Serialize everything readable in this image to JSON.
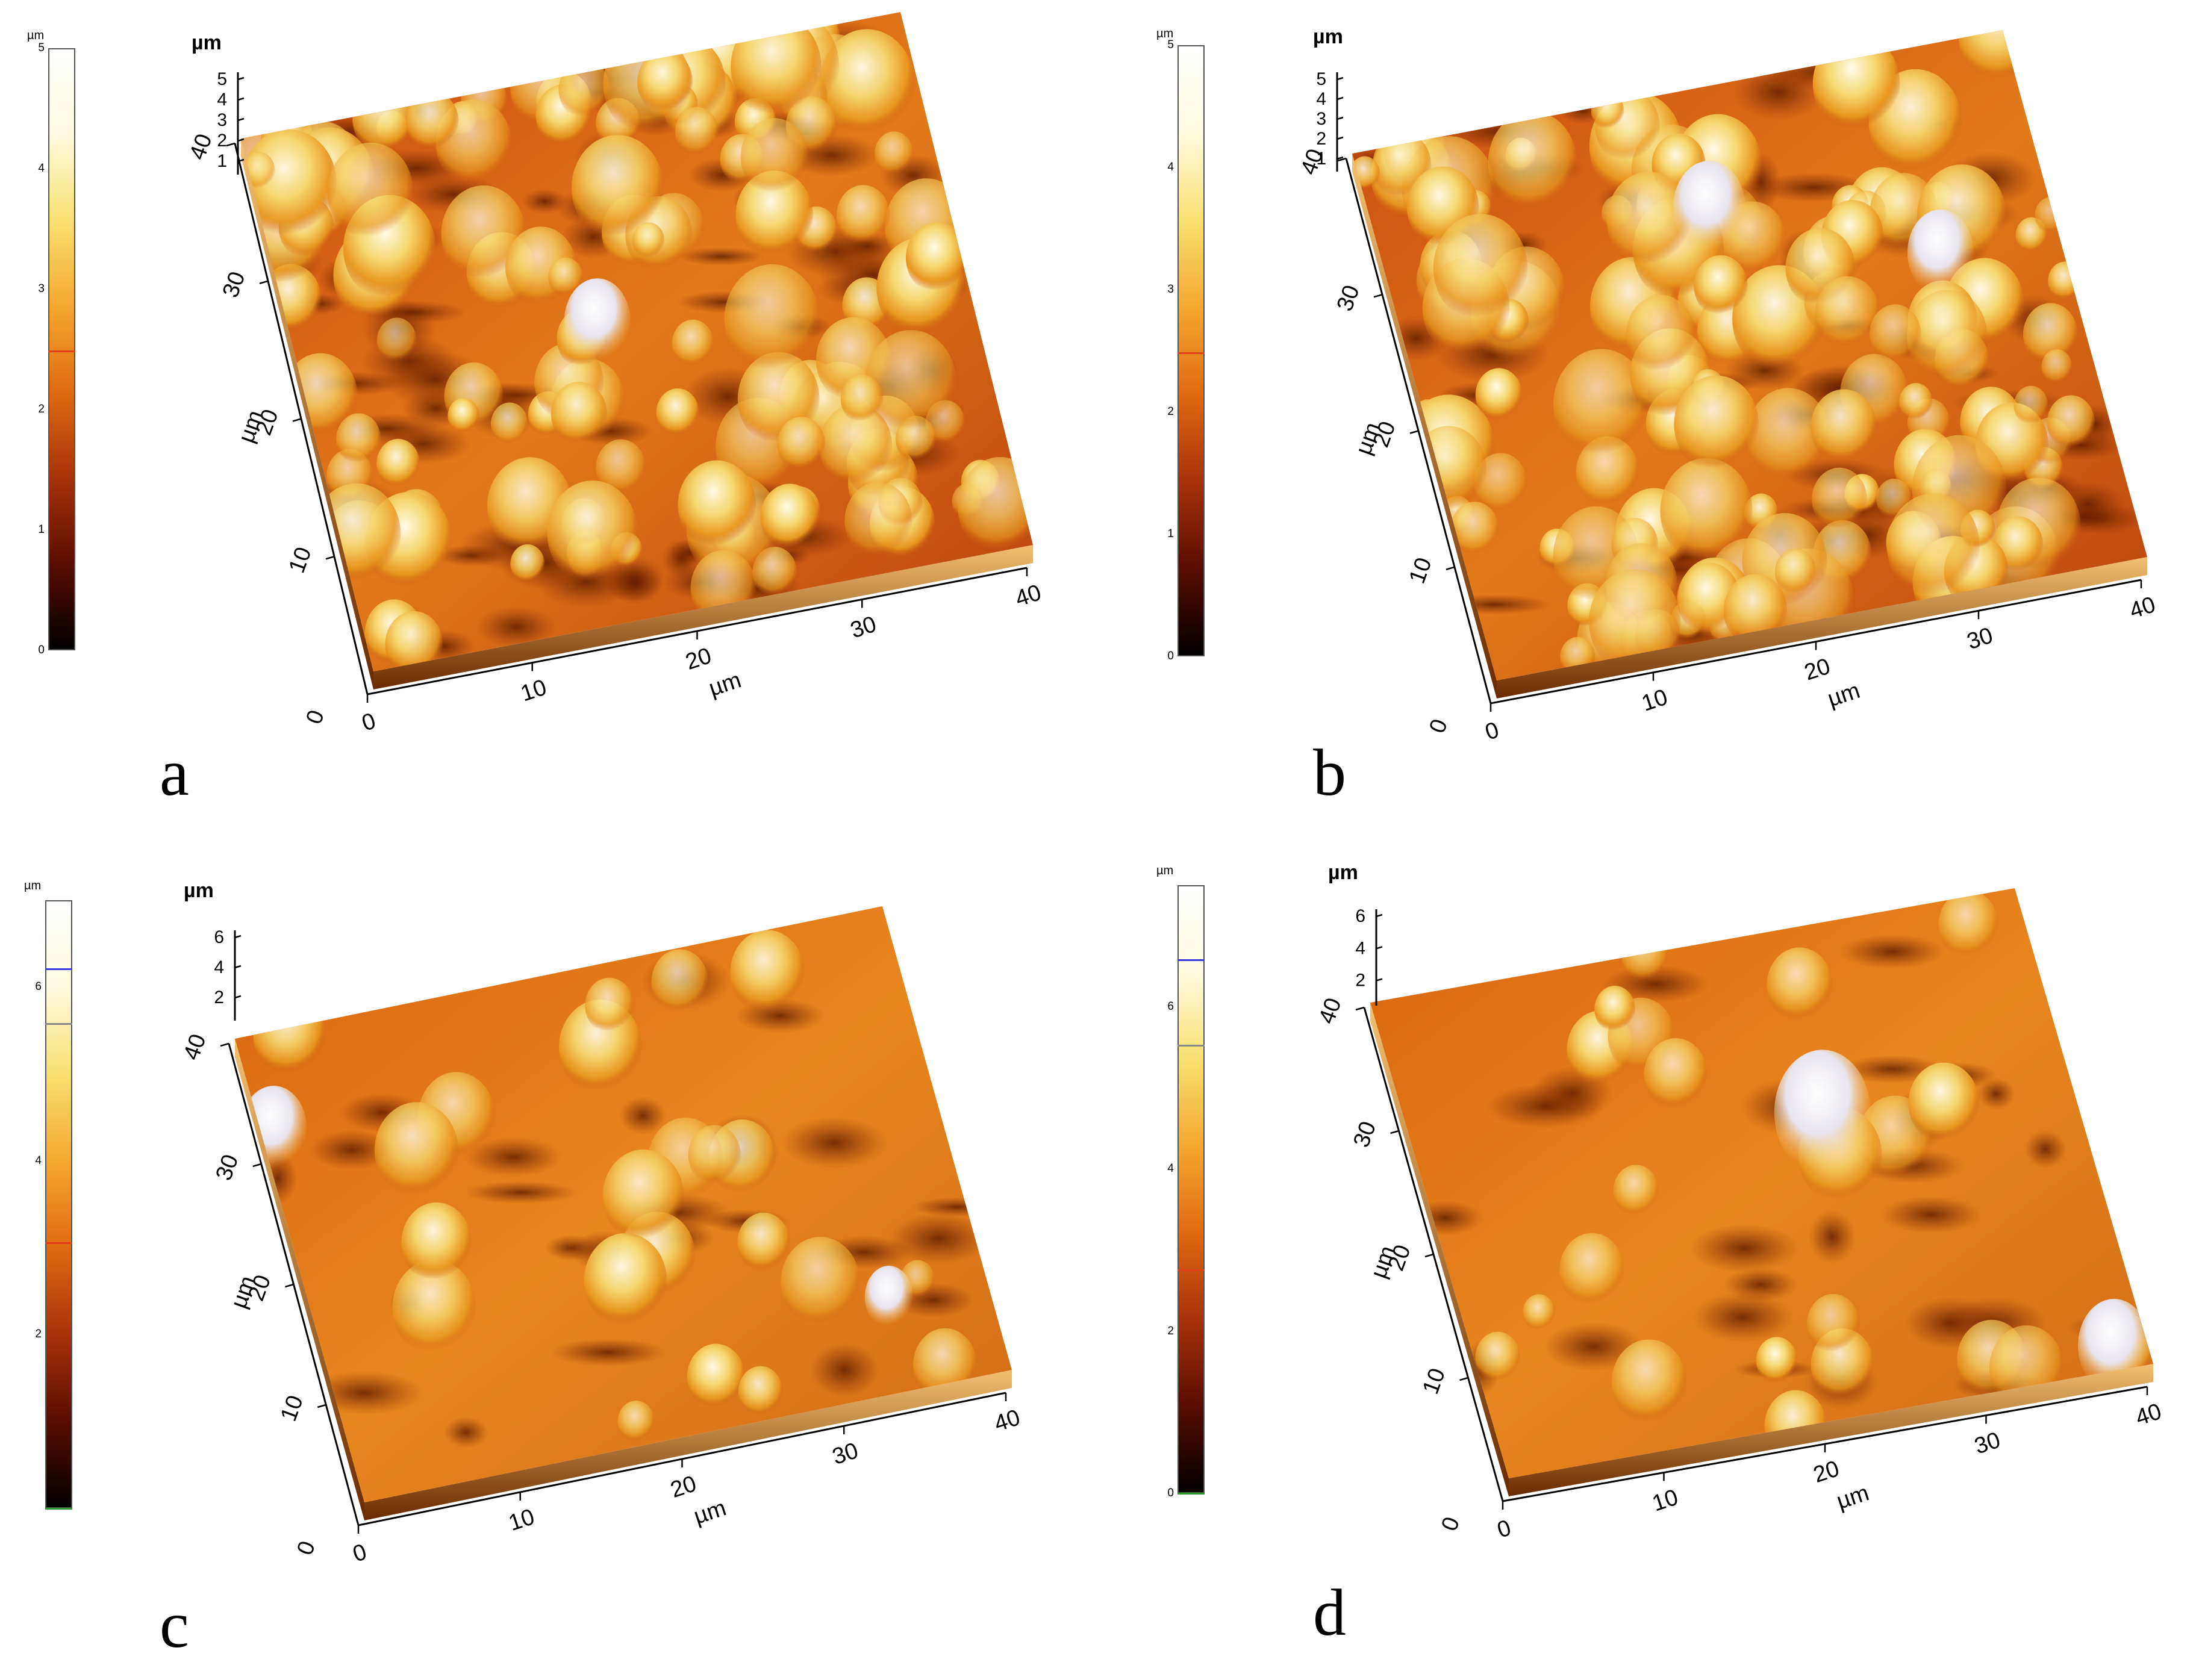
{
  "figure": {
    "panels": [
      {
        "id": "a",
        "letter": "a",
        "z_unit": "µm",
        "colorbar": {
          "unit": "µm",
          "ticks": [
            "0",
            "1",
            "2",
            "3",
            "4",
            "5"
          ],
          "max": 5,
          "marker_colors": [
            "#e0401a"
          ]
        },
        "axes": {
          "z_unit": "µm",
          "z_ticks": [
            "1",
            "2",
            "3",
            "4",
            "5"
          ],
          "y_ticks": [
            "10",
            "20",
            "30",
            "40"
          ],
          "y_unit": "µm",
          "x_ticks": [
            "0",
            "10",
            "20",
            "30",
            "40"
          ],
          "x_unit": "µm",
          "origin_label": "0"
        },
        "surface": "rough"
      },
      {
        "id": "b",
        "letter": "b",
        "z_unit": "µm",
        "colorbar": {
          "unit": "µm",
          "ticks": [
            "0",
            "1",
            "2",
            "3",
            "4",
            "5"
          ],
          "max": 5,
          "marker_colors": [
            "#e0401a"
          ]
        },
        "axes": {
          "z_unit": "µm",
          "z_ticks": [
            "1",
            "2",
            "3",
            "4",
            "5"
          ],
          "y_ticks": [
            "10",
            "20",
            "30",
            "40"
          ],
          "y_unit": "µm",
          "x_ticks": [
            "0",
            "10",
            "20",
            "30",
            "40"
          ],
          "x_unit": "µm",
          "origin_label": "0"
        },
        "surface": "rough"
      },
      {
        "id": "c",
        "letter": "c",
        "z_unit": "µm",
        "colorbar": {
          "unit": "µm",
          "ticks": [
            "2",
            "4",
            "6"
          ],
          "max": 7,
          "marker_colors": [
            "#3a3ae0",
            "#e0401a"
          ]
        },
        "axes": {
          "z_unit": "µm",
          "z_ticks": [
            "2",
            "4",
            "6"
          ],
          "y_ticks": [
            "10",
            "20",
            "30",
            "40"
          ],
          "y_unit": "µm",
          "x_ticks": [
            "0",
            "10",
            "20",
            "30",
            "40"
          ],
          "x_unit": "µm",
          "origin_label": "0"
        },
        "surface": "smooth"
      },
      {
        "id": "d",
        "letter": "d",
        "z_unit": "µm",
        "colorbar": {
          "unit": "µm",
          "ticks": [
            "0",
            "2",
            "4",
            "6"
          ],
          "max": 7.5,
          "marker_colors": [
            "#3a3ae0",
            "#e0401a"
          ]
        },
        "axes": {
          "z_unit": "µm",
          "z_ticks": [
            "2",
            "4",
            "6"
          ],
          "y_ticks": [
            "10",
            "20",
            "30",
            "40"
          ],
          "y_unit": "µm",
          "x_ticks": [
            "0",
            "10",
            "20",
            "30",
            "40"
          ],
          "x_unit": "µm",
          "origin_label": "0"
        },
        "surface": "smooth"
      }
    ],
    "colormap": [
      "#000000",
      "#5a0d00",
      "#a8320a",
      "#e06a10",
      "#f5a830",
      "#f8e070",
      "#fffbe0",
      "#ffffff"
    ]
  }
}
